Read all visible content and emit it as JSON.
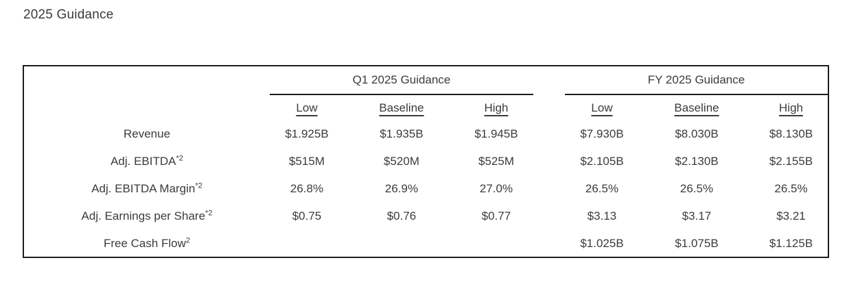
{
  "page_title": "2025 Guidance",
  "colors": {
    "text": "#3b3b3b",
    "border": "#1c1c1c",
    "background": "#ffffff"
  },
  "table": {
    "groups": [
      {
        "label": "Q1 2025 Guidance"
      },
      {
        "label": "FY 2025 Guidance"
      }
    ],
    "subheaders": [
      "Low",
      "Baseline",
      "High"
    ],
    "rows": [
      {
        "label": "Revenue",
        "sup": "",
        "q1": [
          "$1.925B",
          "$1.935B",
          "$1.945B"
        ],
        "fy": [
          "$7.930B",
          "$8.030B",
          "$8.130B"
        ]
      },
      {
        "label": "Adj. EBITDA",
        "sup": "*2",
        "q1": [
          "$515M",
          "$520M",
          "$525M"
        ],
        "fy": [
          "$2.105B",
          "$2.130B",
          "$2.155B"
        ]
      },
      {
        "label": "Adj. EBITDA Margin",
        "sup": "*2",
        "q1": [
          "26.8%",
          "26.9%",
          "27.0%"
        ],
        "fy": [
          "26.5%",
          "26.5%",
          "26.5%"
        ]
      },
      {
        "label": "Adj. Earnings per Share",
        "sup": "*2",
        "q1": [
          "$0.75",
          "$0.76",
          "$0.77"
        ],
        "fy": [
          "$3.13",
          "$3.17",
          "$3.21"
        ]
      },
      {
        "label": "Free Cash Flow",
        "sup": "2",
        "q1": [
          "",
          "",
          ""
        ],
        "fy": [
          "$1.025B",
          "$1.075B",
          "$1.125B"
        ]
      }
    ]
  }
}
